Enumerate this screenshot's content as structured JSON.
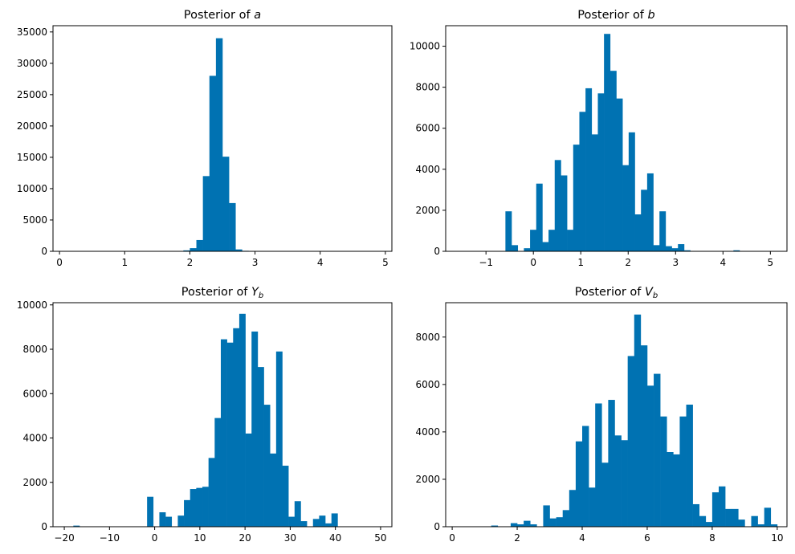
{
  "figure": {
    "background": "#ffffff",
    "bar_color": "#0072b2"
  },
  "chart_data": [
    {
      "type": "bar",
      "title": "Posterior of a",
      "title_main": "Posterior of ",
      "title_var": "a",
      "title_sub": "",
      "xlim": [
        -0.1,
        5.1
      ],
      "ylim": [
        0,
        36000
      ],
      "xticks": [
        0,
        1,
        2,
        3,
        4,
        5
      ],
      "xtick_labels": [
        "0",
        "1",
        "2",
        "3",
        "4",
        "5"
      ],
      "yticks": [
        0,
        5000,
        10000,
        15000,
        20000,
        25000,
        30000,
        35000
      ],
      "ytick_labels": [
        "0",
        "5000",
        "10000",
        "15000",
        "20000",
        "25000",
        "30000",
        "35000"
      ],
      "bin_start": 0.0,
      "bin_width": 0.1,
      "values": [
        0,
        0,
        0,
        0,
        0,
        0,
        0,
        0,
        0,
        0,
        0,
        0,
        0,
        0,
        0,
        0,
        0,
        0,
        50,
        150,
        500,
        1800,
        12000,
        28000,
        34000,
        15100,
        7700,
        300,
        80,
        20,
        0,
        0,
        0,
        0,
        0,
        0,
        0,
        0,
        0,
        0,
        0,
        0,
        0,
        0,
        0,
        0,
        0,
        0,
        0,
        0
      ]
    },
    {
      "type": "bar",
      "title": "Posterior of b",
      "title_main": "Posterior of ",
      "title_var": "b",
      "title_sub": "",
      "xlim": [
        -1.85,
        5.35
      ],
      "ylim": [
        0,
        11000
      ],
      "xticks": [
        -1,
        0,
        1,
        2,
        3,
        4,
        5
      ],
      "xtick_labels": [
        "−1",
        "0",
        "1",
        "2",
        "3",
        "4",
        "5"
      ],
      "yticks": [
        0,
        2000,
        4000,
        6000,
        8000,
        10000
      ],
      "ytick_labels": [
        "0",
        "2000",
        "4000",
        "6000",
        "8000",
        "10000"
      ],
      "bin_start": -1.5,
      "bin_width": 0.13,
      "values": [
        0,
        0,
        0,
        0,
        0,
        0,
        0,
        1950,
        300,
        0,
        150,
        1050,
        3300,
        450,
        1050,
        4450,
        3700,
        1050,
        5200,
        6800,
        7950,
        5700,
        7700,
        10600,
        8800,
        7450,
        4200,
        5800,
        1800,
        3000,
        3800,
        300,
        1950,
        250,
        150,
        350,
        50,
        0,
        0,
        0,
        0,
        0,
        0,
        0,
        50,
        0,
        0,
        0,
        0,
        0
      ]
    },
    {
      "type": "bar",
      "title": "Posterior of Y_b",
      "title_main": "Posterior of ",
      "title_var": "Y",
      "title_sub": "b",
      "xlim": [
        -22.5,
        52.5
      ],
      "ylim": [
        0,
        10100
      ],
      "xticks": [
        -20,
        -10,
        0,
        10,
        20,
        30,
        40,
        50
      ],
      "xtick_labels": [
        "−20",
        "−10",
        "0",
        "10",
        "20",
        "30",
        "40",
        "50"
      ],
      "yticks": [
        0,
        2000,
        4000,
        6000,
        8000,
        10000
      ],
      "ytick_labels": [
        "0",
        "2000",
        "4000",
        "6000",
        "8000",
        "10000"
      ],
      "bin_start": -18.0,
      "bin_width": 1.36,
      "values": [
        50,
        0,
        0,
        0,
        0,
        0,
        0,
        0,
        0,
        0,
        0,
        0,
        1350,
        0,
        650,
        450,
        0,
        500,
        1200,
        1700,
        1750,
        1800,
        3100,
        4900,
        8450,
        8300,
        8950,
        9600,
        4200,
        8800,
        7200,
        5500,
        3300,
        7900,
        2750,
        450,
        1150,
        250,
        0,
        350,
        500,
        150,
        600,
        0,
        0,
        0,
        0,
        0,
        0,
        0
      ]
    },
    {
      "type": "bar",
      "title": "Posterior of V_b",
      "title_main": "Posterior of ",
      "title_var": "V",
      "title_sub": "b",
      "xlim": [
        -0.2,
        10.3
      ],
      "ylim": [
        0,
        9450
      ],
      "xticks": [
        0,
        2,
        4,
        6,
        8,
        10
      ],
      "xtick_labels": [
        "0",
        "2",
        "4",
        "6",
        "8",
        "10"
      ],
      "yticks": [
        0,
        2000,
        4000,
        6000,
        8000
      ],
      "ytick_labels": [
        "0",
        "2000",
        "4000",
        "6000",
        "8000"
      ],
      "bin_start": 0.0,
      "bin_width": 0.2,
      "values": [
        0,
        0,
        0,
        0,
        0,
        0,
        50,
        0,
        0,
        150,
        100,
        250,
        100,
        0,
        900,
        350,
        400,
        700,
        1550,
        3600,
        4250,
        1650,
        5200,
        2700,
        5350,
        3850,
        3650,
        7200,
        8950,
        7650,
        5950,
        6450,
        4650,
        3150,
        3050,
        4650,
        5150,
        950,
        450,
        200,
        1450,
        1700,
        750,
        750,
        300,
        0,
        450,
        100,
        800,
        100
      ]
    }
  ]
}
